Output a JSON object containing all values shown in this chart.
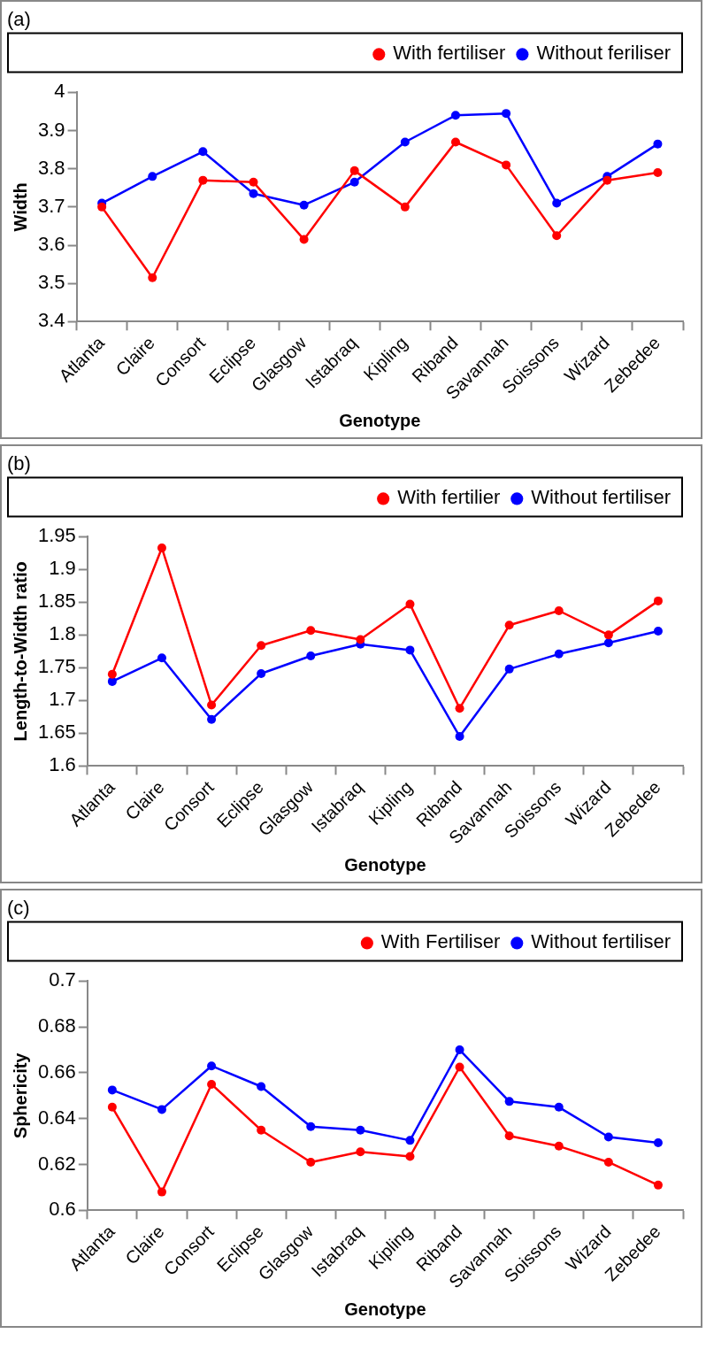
{
  "chart_data": [
    {
      "type": "line",
      "title": "(a)",
      "xlabel": "Genotype",
      "ylabel": "Width",
      "categories": [
        "Atlanta",
        "Claire",
        "Consort",
        "Eclipse",
        "Glasgow",
        "Istabraq",
        "Kipling",
        "Riband",
        "Savannah",
        "Soissons",
        "Wizard",
        "Zebedee"
      ],
      "series": [
        {
          "name": "With fertiliser",
          "color": "#ff0000",
          "values": [
            3.7,
            3.515,
            3.77,
            3.765,
            3.615,
            3.795,
            3.7,
            3.87,
            3.81,
            3.625,
            3.77,
            3.79
          ]
        },
        {
          "name": "Without feriliser",
          "color": "#0000ff",
          "values": [
            3.71,
            3.78,
            3.845,
            3.735,
            3.705,
            3.765,
            3.87,
            3.94,
            3.945,
            3.71,
            3.78,
            3.865
          ]
        }
      ],
      "ylim": [
        3.4,
        4
      ],
      "yticks": [
        3.4,
        3.5,
        3.6,
        3.7,
        3.8,
        3.9,
        4
      ],
      "grid": false,
      "legend": "top right",
      "marker": "circle",
      "line_style": "solid"
    },
    {
      "type": "line",
      "title": "(b)",
      "xlabel": "Genotype",
      "ylabel": "Length-to-Width ratio",
      "categories": [
        "Atlanta",
        "Claire",
        "Consort",
        "Eclipse",
        "Glasgow",
        "Istabraq",
        "Kipling",
        "Riband",
        "Savannah",
        "Soissons",
        "Wizard",
        "Zebedee"
      ],
      "series": [
        {
          "name": "With fertilier",
          "color": "#ff0000",
          "values": [
            1.74,
            1.933,
            1.693,
            1.784,
            1.807,
            1.793,
            1.847,
            1.688,
            1.815,
            1.837,
            1.8,
            1.852
          ]
        },
        {
          "name": "Without fertiliser",
          "color": "#0000ff",
          "values": [
            1.729,
            1.765,
            1.671,
            1.741,
            1.768,
            1.786,
            1.777,
            1.645,
            1.748,
            1.771,
            1.788,
            1.806
          ]
        }
      ],
      "ylim": [
        1.6,
        1.95
      ],
      "yticks": [
        1.6,
        1.65,
        1.7,
        1.75,
        1.8,
        1.85,
        1.9,
        1.95
      ],
      "grid": false,
      "legend": "top right",
      "marker": "circle",
      "line_style": "solid"
    },
    {
      "type": "line",
      "title": "(c)",
      "xlabel": "Genotype",
      "ylabel": "Sphericity",
      "categories": [
        "Atlanta",
        "Claire",
        "Consort",
        "Eclipse",
        "Glasgow",
        "Istabraq",
        "Kipling",
        "Riband",
        "Savannah",
        "Soissons",
        "Wizard",
        "Zebedee"
      ],
      "series": [
        {
          "name": "With Fertiliser",
          "color": "#ff0000",
          "values": [
            0.645,
            0.608,
            0.655,
            0.635,
            0.621,
            0.6255,
            0.6235,
            0.6625,
            0.6325,
            0.628,
            0.621,
            0.611
          ]
        },
        {
          "name": "Without fertiliser",
          "color": "#0000ff",
          "values": [
            0.6525,
            0.644,
            0.663,
            0.654,
            0.6365,
            0.635,
            0.6305,
            0.67,
            0.6475,
            0.645,
            0.632,
            0.6295
          ]
        }
      ],
      "ylim": [
        0.6,
        0.7
      ],
      "yticks": [
        0.6,
        0.62,
        0.64,
        0.66,
        0.68,
        0.7
      ],
      "grid": false,
      "legend": "top right",
      "marker": "circle",
      "line_style": "solid"
    }
  ]
}
